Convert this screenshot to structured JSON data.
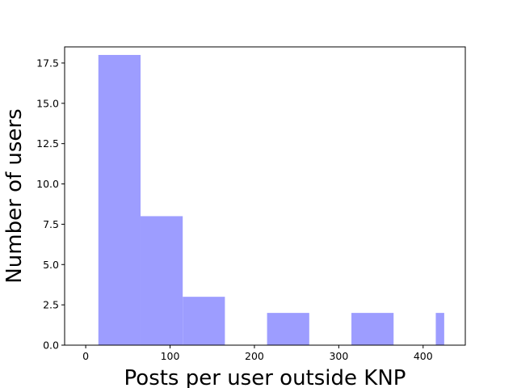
{
  "chart_data": {
    "type": "bar",
    "title": "",
    "xlabel": "Posts per user outside KNP",
    "ylabel": "Number of users",
    "bin_edges": [
      15,
      65,
      115,
      165,
      215,
      265,
      315,
      365,
      415,
      465
    ],
    "values": [
      18,
      8,
      3,
      0,
      2,
      0,
      2,
      0,
      2
    ],
    "bar_upper_bound": 425,
    "xlim": [
      -25,
      450
    ],
    "ylim": [
      0,
      18.5
    ],
    "xticks": [
      0,
      100,
      200,
      300,
      400
    ],
    "xtick_labels": [
      "0",
      "100",
      "200",
      "300",
      "400"
    ],
    "yticks": [
      0,
      2.5,
      5,
      7.5,
      10,
      12.5,
      15,
      17.5
    ],
    "ytick_labels": [
      "0.0",
      "2.5",
      "5.0",
      "7.5",
      "10.0",
      "12.5",
      "15.0",
      "17.5"
    ],
    "grid": false,
    "legend": "none",
    "bar_color": "#9d9dff"
  }
}
